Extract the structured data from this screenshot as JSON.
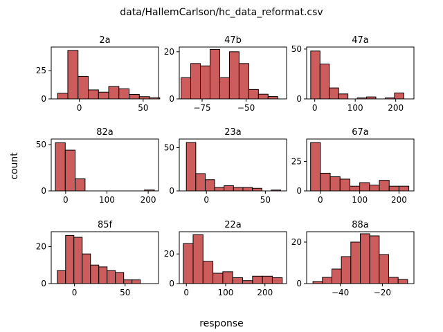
{
  "figure": {
    "title": "data/HallemCarlson/hc_data_reformat.csv",
    "xlabel": "response",
    "ylabel": "count",
    "bar_color": "#cd5c5c",
    "edge_color": "#000000"
  },
  "chart_data": [
    {
      "type": "bar",
      "title": "2a",
      "xlim": [
        -22,
        62
      ],
      "ylim": [
        0,
        46
      ],
      "xticks": [
        0,
        50
      ],
      "yticks": [
        0,
        25
      ],
      "bins": [
        [
          -17,
          -9,
          5
        ],
        [
          -9,
          -1,
          43
        ],
        [
          -1,
          7,
          20
        ],
        [
          7,
          15,
          8
        ],
        [
          15,
          23,
          6
        ],
        [
          23,
          31,
          11
        ],
        [
          31,
          39,
          9
        ],
        [
          39,
          47,
          4
        ],
        [
          47,
          55,
          2
        ],
        [
          55,
          63,
          1
        ]
      ]
    },
    {
      "type": "bar",
      "title": "47b",
      "xlim": [
        -88,
        -27
      ],
      "ylim": [
        0,
        22
      ],
      "xticks": [
        -75,
        -50
      ],
      "yticks": [
        0,
        20
      ],
      "bins": [
        [
          -87,
          -81.5,
          9
        ],
        [
          -81.5,
          -76,
          15
        ],
        [
          -76,
          -70.5,
          14
        ],
        [
          -70.5,
          -65,
          21
        ],
        [
          -65,
          -59.5,
          9
        ],
        [
          -59.5,
          -54,
          20
        ],
        [
          -54,
          -48.5,
          15
        ],
        [
          -48.5,
          -43,
          4
        ],
        [
          -43,
          -37.5,
          2
        ],
        [
          -37.5,
          -32,
          1
        ]
      ]
    },
    {
      "type": "bar",
      "title": "47a",
      "xlim": [
        -20,
        245
      ],
      "ylim": [
        0,
        52
      ],
      "xticks": [
        0,
        100,
        200
      ],
      "yticks": [
        0,
        50
      ],
      "bins": [
        [
          -10,
          13,
          48
        ],
        [
          13,
          36,
          35
        ],
        [
          36,
          59,
          11
        ],
        [
          59,
          82,
          5
        ],
        [
          82,
          105,
          0
        ],
        [
          105,
          128,
          1
        ],
        [
          128,
          151,
          2
        ],
        [
          151,
          174,
          0
        ],
        [
          174,
          197,
          1
        ],
        [
          197,
          220,
          6
        ]
      ]
    },
    {
      "type": "bar",
      "title": "82a",
      "xlim": [
        -35,
        225
      ],
      "ylim": [
        0,
        56
      ],
      "xticks": [
        0,
        100,
        200
      ],
      "yticks": [
        0,
        50
      ],
      "bins": [
        [
          -25,
          -1,
          52
        ],
        [
          -1,
          23,
          44
        ],
        [
          23,
          47,
          13
        ],
        [
          47,
          71,
          0
        ],
        [
          71,
          95,
          0
        ],
        [
          95,
          119,
          0
        ],
        [
          119,
          143,
          0
        ],
        [
          143,
          167,
          0
        ],
        [
          167,
          191,
          0
        ],
        [
          191,
          215,
          1
        ]
      ]
    },
    {
      "type": "bar",
      "title": "23a",
      "xlim": [
        -23,
        68
      ],
      "ylim": [
        0,
        60
      ],
      "xticks": [
        0,
        50
      ],
      "yticks": [
        0,
        50
      ],
      "bins": [
        [
          -17,
          -9,
          56
        ],
        [
          -9,
          -1,
          20
        ],
        [
          -1,
          7,
          13
        ],
        [
          7,
          15,
          4
        ],
        [
          15,
          23,
          6
        ],
        [
          23,
          31,
          4
        ],
        [
          31,
          39,
          4
        ],
        [
          39,
          47,
          3
        ],
        [
          47,
          55,
          0
        ],
        [
          55,
          63,
          1
        ]
      ]
    },
    {
      "type": "bar",
      "title": "67a",
      "xlim": [
        -35,
        238
      ],
      "ylim": [
        0,
        44
      ],
      "xticks": [
        0,
        100,
        200
      ],
      "yticks": [
        0,
        25
      ],
      "bins": [
        [
          -25,
          0,
          41
        ],
        [
          0,
          25,
          15
        ],
        [
          25,
          50,
          12
        ],
        [
          50,
          75,
          10
        ],
        [
          75,
          100,
          4
        ],
        [
          100,
          125,
          7
        ],
        [
          125,
          150,
          5
        ],
        [
          150,
          175,
          9
        ],
        [
          175,
          200,
          4
        ],
        [
          200,
          225,
          4
        ]
      ]
    },
    {
      "type": "bar",
      "title": "85f",
      "xlim": [
        -23,
        83
      ],
      "ylim": [
        0,
        28
      ],
      "xticks": [
        0,
        50
      ],
      "yticks": [
        0,
        20
      ],
      "bins": [
        [
          -17,
          -8.8,
          7
        ],
        [
          -8.8,
          -0.6,
          26
        ],
        [
          -0.6,
          7.6,
          25
        ],
        [
          7.6,
          15.8,
          16
        ],
        [
          15.8,
          24,
          10
        ],
        [
          24,
          32.2,
          9
        ],
        [
          32.2,
          40.4,
          7
        ],
        [
          40.4,
          48.6,
          6
        ],
        [
          48.6,
          56.8,
          2
        ],
        [
          56.8,
          65,
          2
        ]
      ]
    },
    {
      "type": "bar",
      "title": "22a",
      "xlim": [
        -18,
        255
      ],
      "ylim": [
        0,
        35
      ],
      "xticks": [
        0,
        100,
        200
      ],
      "yticks": [
        0,
        20
      ],
      "bins": [
        [
          -8,
          17.2,
          27
        ],
        [
          17.2,
          42.4,
          33
        ],
        [
          42.4,
          67.6,
          15
        ],
        [
          67.6,
          92.8,
          7
        ],
        [
          92.8,
          118,
          8
        ],
        [
          118,
          143.2,
          4
        ],
        [
          143.2,
          168.4,
          2
        ],
        [
          168.4,
          193.6,
          5
        ],
        [
          193.6,
          218.8,
          5
        ],
        [
          218.8,
          244,
          4
        ]
      ]
    },
    {
      "type": "bar",
      "title": "88a",
      "xlim": [
        -56,
        -5
      ],
      "ylim": [
        0,
        25
      ],
      "xticks": [
        -40,
        -20
      ],
      "yticks": [
        0,
        20
      ],
      "bins": [
        [
          -53,
          -48.5,
          1
        ],
        [
          -48.5,
          -44,
          3
        ],
        [
          -44,
          -39.5,
          7
        ],
        [
          -39.5,
          -35,
          13
        ],
        [
          -35,
          -30.5,
          20
        ],
        [
          -30.5,
          -26,
          24
        ],
        [
          -26,
          -21.5,
          23
        ],
        [
          -21.5,
          -17,
          14
        ],
        [
          -17,
          -12.5,
          3
        ],
        [
          -12.5,
          -8,
          2
        ]
      ]
    }
  ]
}
